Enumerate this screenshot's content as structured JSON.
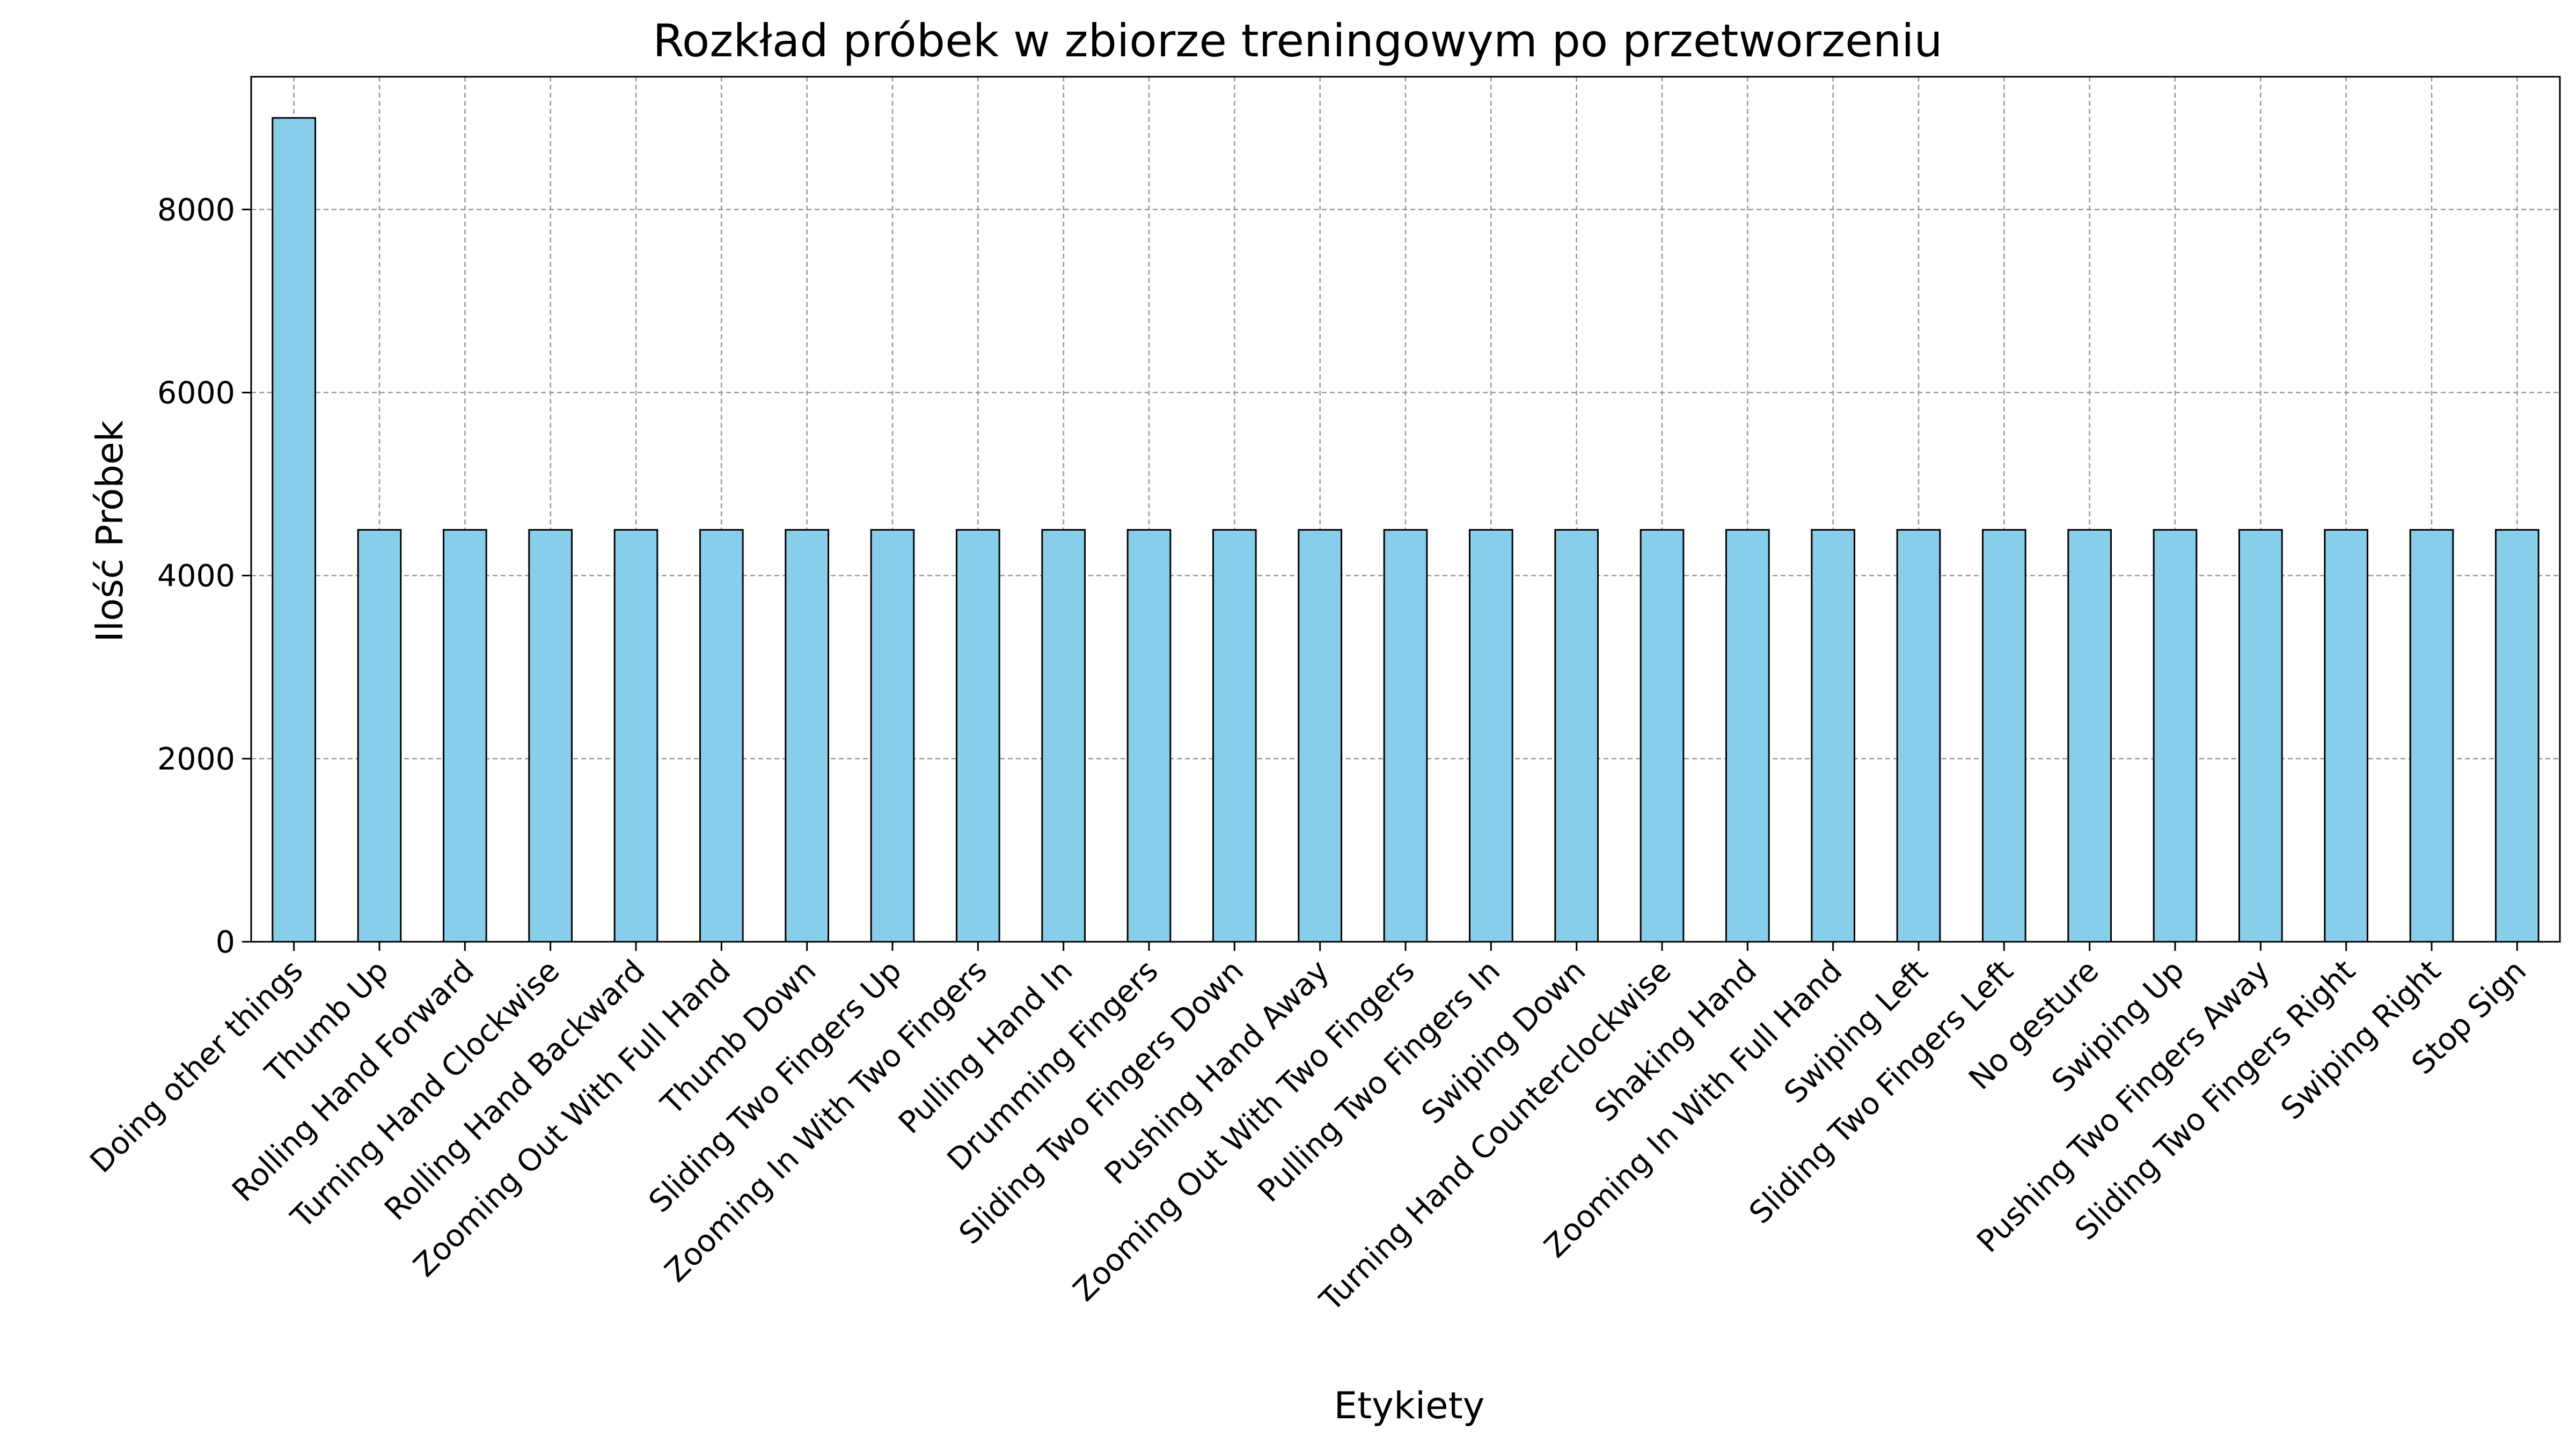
{
  "chart_data": {
    "type": "bar",
    "title": "Rozkład próbek w zbiorze treningowym po przetworzeniu",
    "xlabel": "Etykiety",
    "ylabel": "Ilość Próbek",
    "categories": [
      "Doing other things",
      "Thumb Up",
      "Rolling Hand Forward",
      "Turning Hand Clockwise",
      "Rolling Hand Backward",
      "Zooming Out With Full Hand",
      "Thumb Down",
      "Sliding Two Fingers Up",
      "Zooming In With Two Fingers",
      "Pulling Hand In",
      "Drumming Fingers",
      "Sliding Two Fingers Down",
      "Pushing Hand Away",
      "Zooming Out With Two Fingers",
      "Pulling Two Fingers In",
      "Swiping Down",
      "Turning Hand Counterclockwise",
      "Shaking Hand",
      "Zooming In With Full Hand",
      "Swiping Left",
      "Sliding Two Fingers Left",
      "No gesture",
      "Swiping Up",
      "Pushing Two Fingers Away",
      "Sliding Two Fingers Right",
      "Swiping Right",
      "Stop Sign"
    ],
    "values": [
      9000,
      4500,
      4500,
      4500,
      4500,
      4500,
      4500,
      4500,
      4500,
      4500,
      4500,
      4500,
      4500,
      4500,
      4500,
      4500,
      4500,
      4500,
      4500,
      4500,
      4500,
      4500,
      4500,
      4500,
      4500,
      4500,
      4500
    ],
    "ylim": [
      0,
      9450
    ],
    "yticks": [
      0,
      2000,
      4000,
      6000,
      8000
    ],
    "grid": true,
    "bar_color": "#87ceeb",
    "bar_edge_color": "#000000",
    "grid_color": "#999999"
  }
}
